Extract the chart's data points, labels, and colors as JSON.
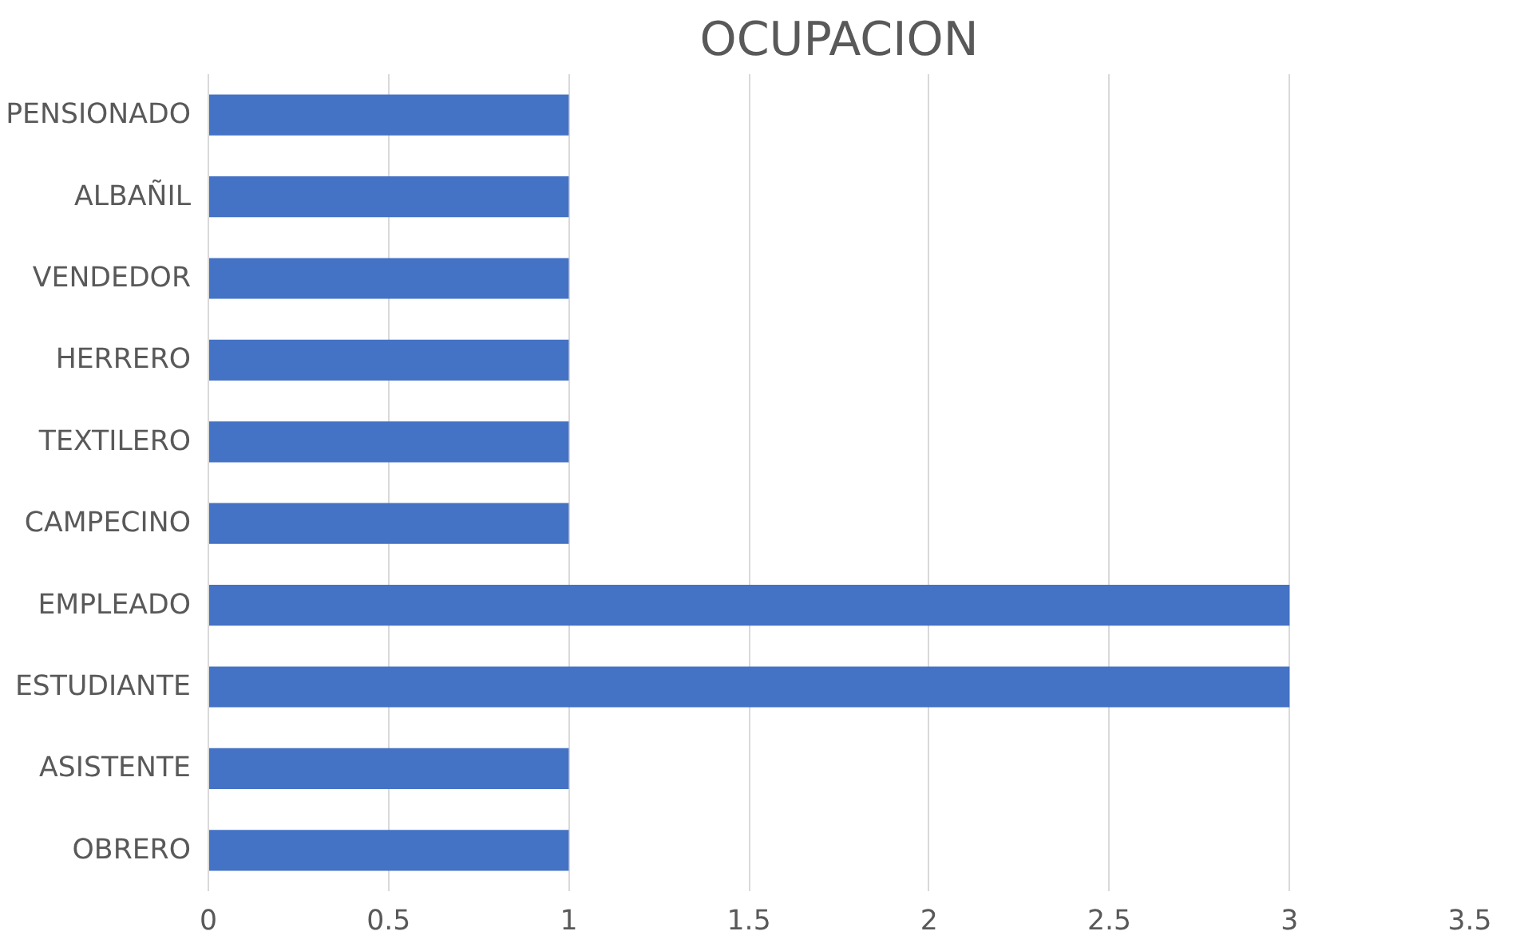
{
  "chart_data": {
    "type": "bar",
    "orientation": "horizontal",
    "title": "OCUPACION",
    "categories": [
      "PENSIONADO",
      "ALBAÑIL",
      "VENDEDOR",
      "HERRERO",
      "TEXTILERO",
      "CAMPECINO",
      "EMPLEADO",
      "ESTUDIANTE",
      "ASISTENTE",
      "OBRERO"
    ],
    "values": [
      1,
      1,
      1,
      1,
      1,
      1,
      3,
      3,
      1,
      1
    ],
    "color": "#4472c4",
    "xlim": [
      0,
      3.5
    ],
    "xticks": [
      0,
      {
        "value": 0.5,
        "label": "0.5"
      },
      1,
      {
        "value": 1.5,
        "label": "1.5"
      },
      2,
      {
        "value": 2.5,
        "label": "2.5"
      },
      3,
      {
        "value": 3.5,
        "label": "3.5"
      }
    ],
    "grid": "x"
  }
}
